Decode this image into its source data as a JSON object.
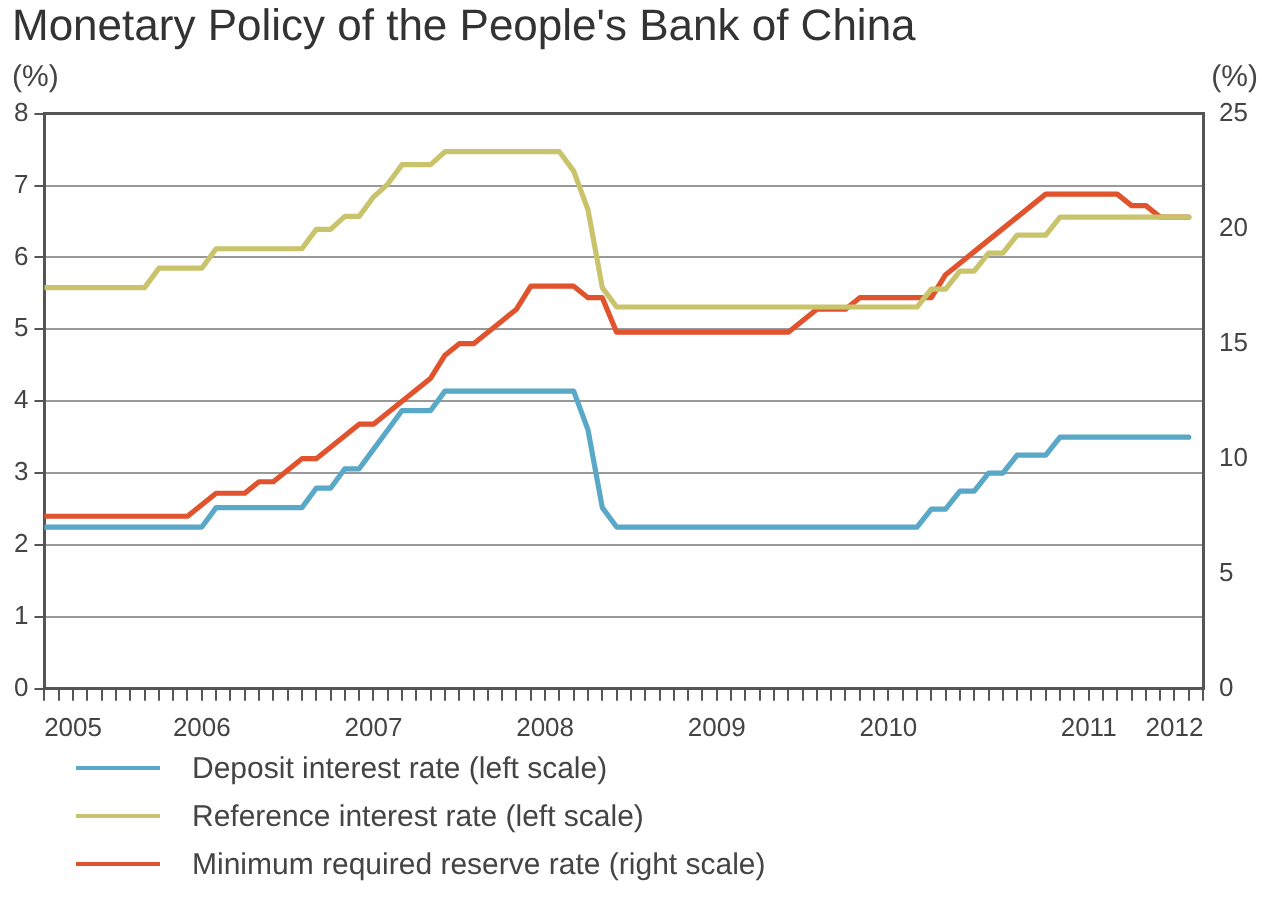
{
  "chart_data": {
    "type": "line",
    "title": "Monetary Policy of the People's Bank of China",
    "ylabel": "(%)",
    "y2label": "(%)",
    "x": [
      "2005-08",
      "2005-09",
      "2005-10",
      "2005-11",
      "2005-12",
      "2006-01",
      "2006-02",
      "2006-03",
      "2006-04",
      "2006-05",
      "2006-06",
      "2006-07",
      "2006-08",
      "2006-09",
      "2006-10",
      "2006-11",
      "2006-12",
      "2007-01",
      "2007-02",
      "2007-03",
      "2007-04",
      "2007-05",
      "2007-06",
      "2007-07",
      "2007-08",
      "2007-09",
      "2007-10",
      "2007-11",
      "2007-12",
      "2008-01",
      "2008-02",
      "2008-03",
      "2008-04",
      "2008-05",
      "2008-06",
      "2008-07",
      "2008-08",
      "2008-09",
      "2008-10",
      "2008-11",
      "2008-12",
      "2009-01",
      "2009-02",
      "2009-03",
      "2009-04",
      "2009-05",
      "2009-06",
      "2009-07",
      "2009-08",
      "2009-09",
      "2009-10",
      "2009-11",
      "2009-12",
      "2010-01",
      "2010-02",
      "2010-03",
      "2010-04",
      "2010-05",
      "2010-06",
      "2010-07",
      "2010-08",
      "2010-09",
      "2010-10",
      "2010-11",
      "2010-12",
      "2011-01",
      "2011-02",
      "2011-03",
      "2011-04",
      "2011-05",
      "2011-06",
      "2011-07",
      "2011-08",
      "2011-09",
      "2011-10",
      "2011-11",
      "2011-12",
      "2012-01",
      "2012-02",
      "2012-03",
      "2012-04"
    ],
    "series": [
      {
        "name": "Deposit interest rate (left scale)",
        "color": "#5aa8c8",
        "values": [
          2.25,
          2.25,
          2.25,
          2.25,
          2.25,
          2.25,
          2.25,
          2.25,
          2.25,
          2.25,
          2.25,
          2.25,
          2.52,
          2.52,
          2.52,
          2.52,
          2.52,
          2.52,
          2.52,
          2.79,
          2.79,
          3.06,
          3.06,
          3.33,
          3.6,
          3.87,
          3.87,
          3.87,
          4.14,
          4.14,
          4.14,
          4.14,
          4.14,
          4.14,
          4.14,
          4.14,
          4.14,
          4.14,
          3.6,
          2.52,
          2.25,
          2.25,
          2.25,
          2.25,
          2.25,
          2.25,
          2.25,
          2.25,
          2.25,
          2.25,
          2.25,
          2.25,
          2.25,
          2.25,
          2.25,
          2.25,
          2.25,
          2.25,
          2.25,
          2.25,
          2.25,
          2.25,
          2.5,
          2.5,
          2.75,
          2.75,
          3.0,
          3.0,
          3.25,
          3.25,
          3.25,
          3.5,
          3.5,
          3.5,
          3.5,
          3.5,
          3.5,
          3.5,
          3.5,
          3.5,
          3.5
        ]
      },
      {
        "name": "Reference interest rate (left scale)",
        "color": "#c9c46c",
        "values": [
          5.58,
          5.58,
          5.58,
          5.58,
          5.58,
          5.58,
          5.58,
          5.58,
          5.85,
          5.85,
          5.85,
          5.85,
          6.12,
          6.12,
          6.12,
          6.12,
          6.12,
          6.12,
          6.12,
          6.39,
          6.39,
          6.57,
          6.57,
          6.84,
          7.02,
          7.29,
          7.29,
          7.29,
          7.47,
          7.47,
          7.47,
          7.47,
          7.47,
          7.47,
          7.47,
          7.47,
          7.47,
          7.2,
          6.66,
          5.58,
          5.31,
          5.31,
          5.31,
          5.31,
          5.31,
          5.31,
          5.31,
          5.31,
          5.31,
          5.31,
          5.31,
          5.31,
          5.31,
          5.31,
          5.31,
          5.31,
          5.31,
          5.31,
          5.31,
          5.31,
          5.31,
          5.31,
          5.56,
          5.56,
          5.81,
          5.81,
          6.06,
          6.06,
          6.31,
          6.31,
          6.31,
          6.56,
          6.56,
          6.56,
          6.56,
          6.56,
          6.56,
          6.56,
          6.56,
          6.56,
          6.56
        ]
      },
      {
        "name": "Minimum required reserve rate (right scale)",
        "color": "#e0532c",
        "axis": "y2",
        "values": [
          7.5,
          7.5,
          7.5,
          7.5,
          7.5,
          7.5,
          7.5,
          7.5,
          7.5,
          7.5,
          7.5,
          8.0,
          8.5,
          8.5,
          8.5,
          9.0,
          9.0,
          9.5,
          10.0,
          10.0,
          10.5,
          11.0,
          11.5,
          11.5,
          12.0,
          12.5,
          13.0,
          13.5,
          14.5,
          15.0,
          15.0,
          15.5,
          16.0,
          16.5,
          17.5,
          17.5,
          17.5,
          17.5,
          17.0,
          17.0,
          15.5,
          15.5,
          15.5,
          15.5,
          15.5,
          15.5,
          15.5,
          15.5,
          15.5,
          15.5,
          15.5,
          15.5,
          15.5,
          16.0,
          16.5,
          16.5,
          16.5,
          17.0,
          17.0,
          17.0,
          17.0,
          17.0,
          17.0,
          18.0,
          18.5,
          19.0,
          19.5,
          20.0,
          20.5,
          21.0,
          21.5,
          21.5,
          21.5,
          21.5,
          21.5,
          21.5,
          21.0,
          21.0,
          20.5,
          20.5,
          20.5
        ]
      }
    ],
    "xlim": [
      "2005-08",
      "2012-05"
    ],
    "xticks": [
      {
        "value": "2005-10",
        "label": "2005"
      },
      {
        "value": "2006-07",
        "label": "2006"
      },
      {
        "value": "2007-07",
        "label": "2007"
      },
      {
        "value": "2008-07",
        "label": "2008"
      },
      {
        "value": "2009-07",
        "label": "2009"
      },
      {
        "value": "2010-07",
        "label": "2010"
      },
      {
        "value": "2011-09",
        "label": "2011"
      },
      {
        "value": "2012-03",
        "label": "2012"
      },
      {
        "value": "2005-08",
        "label": null
      },
      {
        "value": "2005-09",
        "label": null
      },
      {
        "value": "2005-10",
        "label": null
      },
      {
        "value": "2005-11",
        "label": null
      },
      {
        "value": "2005-12",
        "label": null
      },
      {
        "value": "2006-01",
        "label": null
      },
      {
        "value": "2006-02",
        "label": null
      },
      {
        "value": "2006-03",
        "label": null
      },
      {
        "value": "2006-04",
        "label": null
      },
      {
        "value": "2006-05",
        "label": null
      },
      {
        "value": "2006-06",
        "label": null
      },
      {
        "value": "2006-07",
        "label": null
      },
      {
        "value": "2006-08",
        "label": null
      },
      {
        "value": "2006-09",
        "label": null
      },
      {
        "value": "2006-10",
        "label": null
      },
      {
        "value": "2006-11",
        "label": null
      },
      {
        "value": "2006-12",
        "label": null
      },
      {
        "value": "2007-01",
        "label": null
      },
      {
        "value": "2007-02",
        "label": null
      },
      {
        "value": "2007-03",
        "label": null
      },
      {
        "value": "2007-04",
        "label": null
      },
      {
        "value": "2007-05",
        "label": null
      },
      {
        "value": "2007-06",
        "label": null
      },
      {
        "value": "2007-07",
        "label": null
      },
      {
        "value": "2007-08",
        "label": null
      },
      {
        "value": "2007-09",
        "label": null
      },
      {
        "value": "2007-10",
        "label": null
      },
      {
        "value": "2007-11",
        "label": null
      },
      {
        "value": "2007-12",
        "label": null
      },
      {
        "value": "2008-01",
        "label": null
      },
      {
        "value": "2008-02",
        "label": null
      },
      {
        "value": "2008-03",
        "label": null
      },
      {
        "value": "2008-04",
        "label": null
      },
      {
        "value": "2008-05",
        "label": null
      },
      {
        "value": "2008-06",
        "label": null
      },
      {
        "value": "2008-07",
        "label": null
      },
      {
        "value": "2008-08",
        "label": null
      },
      {
        "value": "2008-09",
        "label": null
      },
      {
        "value": "2008-10",
        "label": null
      },
      {
        "value": "2008-11",
        "label": null
      },
      {
        "value": "2008-12",
        "label": null
      },
      {
        "value": "2009-01",
        "label": null
      },
      {
        "value": "2009-02",
        "label": null
      },
      {
        "value": "2009-03",
        "label": null
      },
      {
        "value": "2009-04",
        "label": null
      },
      {
        "value": "2009-05",
        "label": null
      },
      {
        "value": "2009-06",
        "label": null
      },
      {
        "value": "2009-07",
        "label": null
      },
      {
        "value": "2009-08",
        "label": null
      },
      {
        "value": "2009-09",
        "label": null
      },
      {
        "value": "2009-10",
        "label": null
      },
      {
        "value": "2009-11",
        "label": null
      },
      {
        "value": "2009-12",
        "label": null
      },
      {
        "value": "2010-01",
        "label": null
      },
      {
        "value": "2010-02",
        "label": null
      },
      {
        "value": "2010-03",
        "label": null
      },
      {
        "value": "2010-04",
        "label": null
      },
      {
        "value": "2010-05",
        "label": null
      },
      {
        "value": "2010-06",
        "label": null
      },
      {
        "value": "2010-07",
        "label": null
      },
      {
        "value": "2010-08",
        "label": null
      },
      {
        "value": "2010-09",
        "label": null
      },
      {
        "value": "2010-10",
        "label": null
      },
      {
        "value": "2010-11",
        "label": null
      },
      {
        "value": "2010-12",
        "label": null
      },
      {
        "value": "2011-01",
        "label": null
      },
      {
        "value": "2011-02",
        "label": null
      },
      {
        "value": "2011-03",
        "label": null
      },
      {
        "value": "2011-04",
        "label": null
      },
      {
        "value": "2011-05",
        "label": null
      },
      {
        "value": "2011-06",
        "label": null
      },
      {
        "value": "2011-07",
        "label": null
      },
      {
        "value": "2011-08",
        "label": null
      },
      {
        "value": "2011-09",
        "label": null
      },
      {
        "value": "2011-10",
        "label": null
      },
      {
        "value": "2011-11",
        "label": null
      },
      {
        "value": "2011-12",
        "label": null
      },
      {
        "value": "2012-01",
        "label": null
      },
      {
        "value": "2012-02",
        "label": null
      },
      {
        "value": "2012-03",
        "label": null
      },
      {
        "value": "2012-04",
        "label": null
      },
      {
        "value": "2012-05",
        "label": null
      }
    ],
    "ylim": [
      0,
      8
    ],
    "yticks": [
      0,
      1,
      2,
      3,
      4,
      5,
      6,
      7,
      8
    ],
    "y2lim": [
      0,
      25
    ],
    "y2ticks": [
      0,
      5,
      10,
      15,
      20,
      25
    ],
    "grid": "y",
    "legend": "bottom",
    "marker": "none",
    "line_style": "solid"
  }
}
